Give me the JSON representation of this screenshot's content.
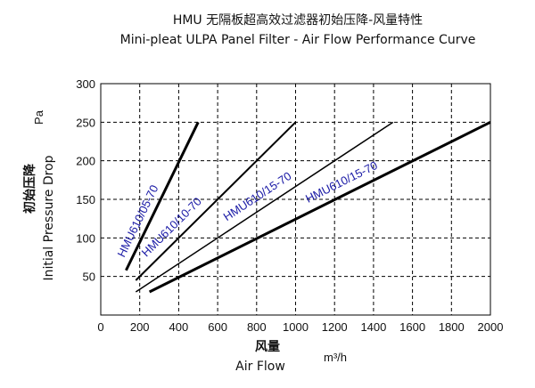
{
  "chart_data": {
    "type": "line",
    "title": "HMU  无隔板超高效过滤器初始压降-风量特性",
    "subtitle": "Mini-pleat ULPA Panel Filter - Air Flow Performance Curve",
    "xlabel_cn": "风量",
    "xlabel_en": "Air Flow",
    "x_unit": "m³/h",
    "ylabel_cn": "初始压降",
    "ylabel_en": "Initial Pressure Drop",
    "y_unit": "Pa",
    "xlim": [
      0,
      2000
    ],
    "ylim": [
      0,
      300
    ],
    "x_ticks": [
      "0",
      "200",
      "400",
      "600",
      "800",
      "1000",
      "1200",
      "1400",
      "1600",
      "1800",
      "2000"
    ],
    "y_ticks": [
      "50",
      "100",
      "150",
      "200",
      "250",
      "300"
    ],
    "grid": true,
    "grid_style": "dashed",
    "series": [
      {
        "name": "HMU610/05-70",
        "x": [
          130,
          500
        ],
        "y": [
          58,
          250
        ],
        "color": "#000000",
        "label_color": "#1a1aa6"
      },
      {
        "name": "HMU610/10-70",
        "x": [
          180,
          1000
        ],
        "y": [
          45,
          250
        ],
        "color": "#000000",
        "label_color": "#1a1aa6"
      },
      {
        "name": "HMU610/15-70",
        "x": [
          180,
          1500
        ],
        "y": [
          30,
          250
        ],
        "color": "#000000",
        "label_color": "#1a1aa6"
      },
      {
        "name": "HMU610/15-70",
        "x": [
          250,
          2000
        ],
        "y": [
          30,
          250
        ],
        "color": "#000000",
        "label_color": "#1a1aa6"
      }
    ]
  }
}
